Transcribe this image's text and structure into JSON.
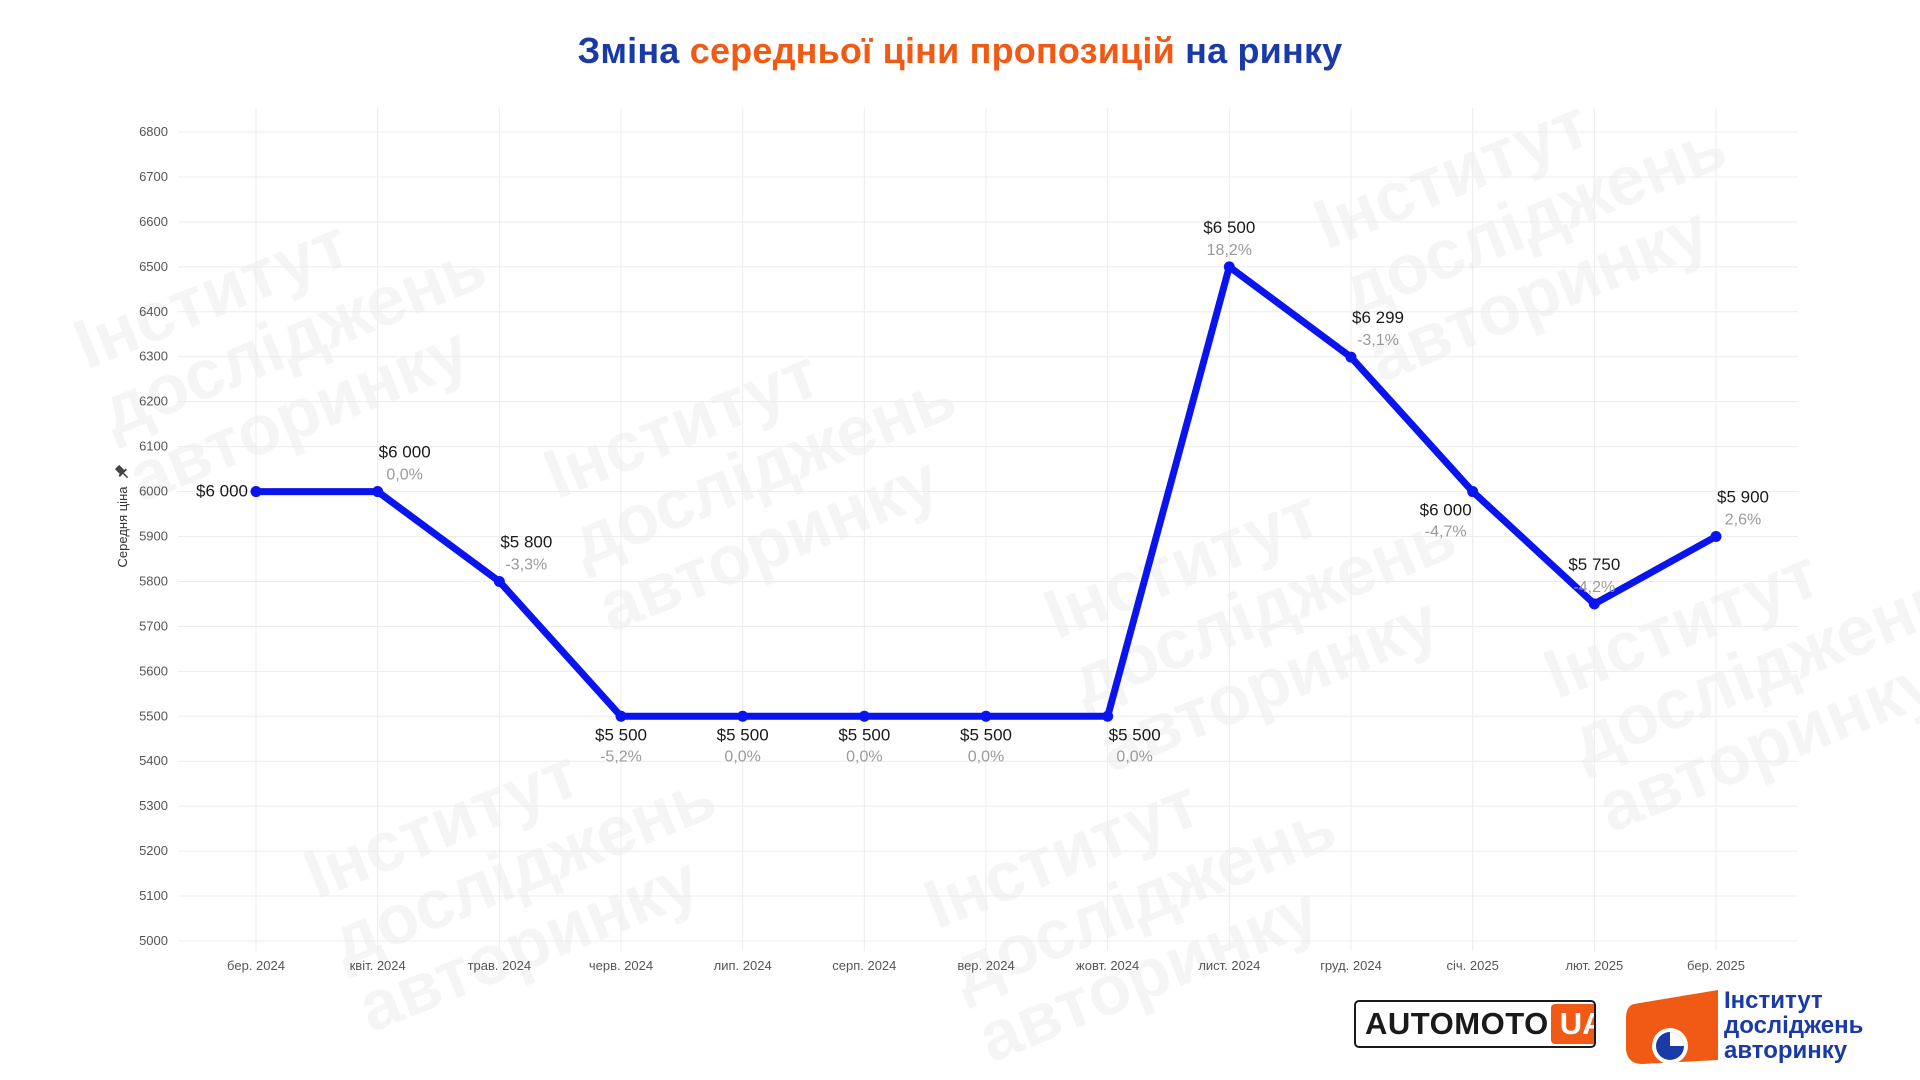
{
  "title": {
    "part1": "Зміна",
    "part2": "середньої ціни пропозицій",
    "part3": "на ринку"
  },
  "chart_data": {
    "type": "line",
    "ylabel": "Середня ціна",
    "ylim": [
      5000,
      6800
    ],
    "yticks": [
      5000,
      5100,
      5200,
      5300,
      5400,
      5500,
      5600,
      5700,
      5800,
      5900,
      6000,
      6100,
      6200,
      6300,
      6400,
      6500,
      6600,
      6700,
      6800
    ],
    "grid": true,
    "categories": [
      "бер. 2024",
      "квіт. 2024",
      "трав. 2024",
      "черв. 2024",
      "лип. 2024",
      "серп. 2024",
      "вер. 2024",
      "жовт. 2024",
      "лист. 2024",
      "груд. 2024",
      "січ. 2025",
      "лют. 2025",
      "бер. 2025"
    ],
    "values": [
      6000,
      6000,
      5800,
      5500,
      5500,
      5500,
      5500,
      5500,
      6500,
      6299,
      6000,
      5750,
      5900
    ],
    "value_labels": [
      "$6 000",
      "$6 000",
      "$5 800",
      "$5 500",
      "$5 500",
      "$5 500",
      "$5 500",
      "$5 500",
      "$6 500",
      "$6 299",
      "$6 000",
      "$5 750",
      "$5 900"
    ],
    "change_labels": [
      "",
      "0,0%",
      "-3,3%",
      "-5,2%",
      "0,0%",
      "0,0%",
      "0,0%",
      "0,0%",
      "18,2%",
      "-3,1%",
      "-4,7%",
      "-4,2%",
      "2,6%"
    ],
    "line_color": "#0a14ee"
  },
  "watermark": {
    "line1": "Інститут",
    "line2": "досліджень",
    "line3": "авторинку"
  },
  "logos": {
    "automoto_main": "AUTOMOTO",
    "automoto_suffix": "UA",
    "institute_line1": "Інститут",
    "institute_line2": "досліджень",
    "institute_line3": "авторинку"
  },
  "colors": {
    "title_blue": "#1a3aa8",
    "title_orange": "#f05a14",
    "brand_orange": "#f05a14",
    "brand_blue": "#1a3aa8"
  }
}
